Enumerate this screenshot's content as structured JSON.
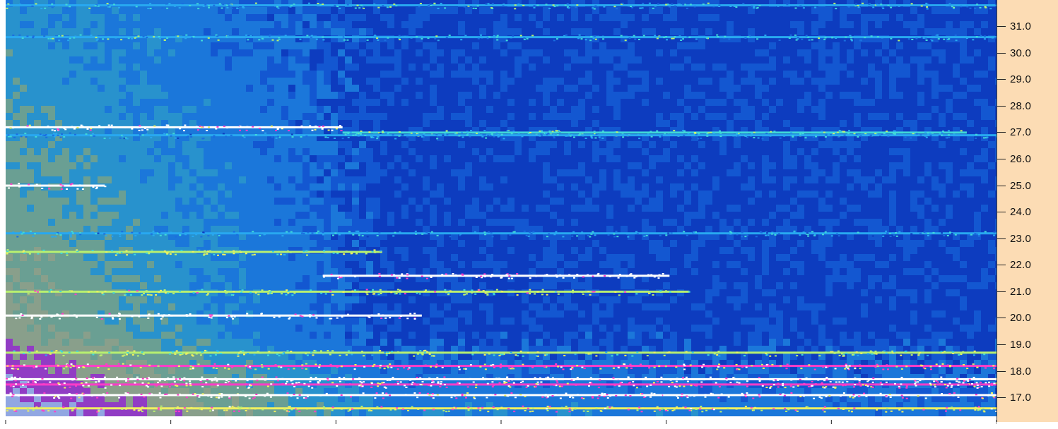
{
  "chart_data": {
    "type": "heatmap",
    "title": "",
    "xlabel": "",
    "ylabel": "",
    "y_axis_position": "right",
    "y_tick_labels": [
      "31.0",
      "30.0",
      "29.0",
      "28.0",
      "27.0",
      "26.0",
      "25.0",
      "24.0",
      "23.0",
      "22.0",
      "21.0",
      "20.0",
      "19.0",
      "18.0",
      "17.0"
    ],
    "y_ticks": [
      31.0,
      30.0,
      29.0,
      28.0,
      27.0,
      26.0,
      25.0,
      24.0,
      23.0,
      22.0,
      21.0,
      20.0,
      19.0,
      18.0,
      17.0
    ],
    "ylim": [
      16.3,
      32.0
    ],
    "x_tick_labels": [],
    "x_tick_count": 7,
    "colormap": [
      "#0d3cbf",
      "#1a6ee0",
      "#28a8f0",
      "#40d8d8",
      "#b8f070",
      "#f0f060",
      "#ff3cc8",
      "#ffffff"
    ],
    "features": [
      {
        "y": 31.8,
        "x_start": 0.0,
        "x_end": 1.0,
        "intensity": 0.35
      },
      {
        "y": 30.6,
        "x_start": 0.0,
        "x_end": 1.0,
        "intensity": 0.35
      },
      {
        "y": 27.2,
        "x_start": 0.0,
        "x_end": 0.34,
        "intensity": 0.9
      },
      {
        "y": 27.0,
        "x_start": 0.34,
        "x_end": 0.97,
        "intensity": 0.45
      },
      {
        "y": 26.9,
        "x_start": 0.0,
        "x_end": 1.0,
        "intensity": 0.3
      },
      {
        "y": 25.0,
        "x_start": 0.0,
        "x_end": 0.1,
        "intensity": 1.0
      },
      {
        "y": 23.2,
        "x_start": 0.0,
        "x_end": 1.0,
        "intensity": 0.3
      },
      {
        "y": 22.5,
        "x_start": 0.0,
        "x_end": 0.38,
        "intensity": 0.55
      },
      {
        "y": 21.6,
        "x_start": 0.32,
        "x_end": 0.67,
        "intensity": 1.0
      },
      {
        "y": 21.0,
        "x_start": 0.0,
        "x_end": 0.69,
        "intensity": 0.6
      },
      {
        "y": 20.1,
        "x_start": 0.0,
        "x_end": 0.42,
        "intensity": 1.0
      },
      {
        "y": 18.7,
        "x_start": 0.0,
        "x_end": 1.0,
        "intensity": 0.55
      },
      {
        "y": 18.2,
        "x_start": 0.0,
        "x_end": 1.0,
        "intensity": 0.75
      },
      {
        "y": 17.7,
        "x_start": 0.0,
        "x_end": 1.0,
        "intensity": 0.95
      },
      {
        "y": 17.5,
        "x_start": 0.0,
        "x_end": 1.0,
        "intensity": 0.85
      },
      {
        "y": 17.1,
        "x_start": 0.0,
        "x_end": 1.0,
        "intensity": 0.9
      },
      {
        "y": 16.6,
        "x_start": 0.0,
        "x_end": 1.0,
        "intensity": 0.7
      }
    ]
  }
}
